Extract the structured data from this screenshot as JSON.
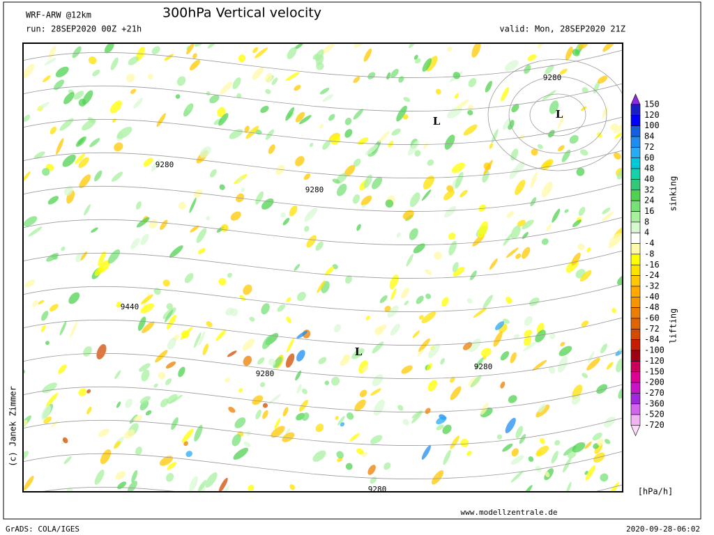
{
  "header": {
    "model": "WRF-ARW @12km",
    "title": "300hPa Vertical velocity",
    "run": "run: 28SEP2020 00Z +21h",
    "valid": "valid: Mon, 28SEP2020 21Z"
  },
  "map": {
    "contour_labels": [
      "9280",
      "9280",
      "9280",
      "9440",
      "9280",
      "9280",
      "9280"
    ],
    "lows": [
      "L",
      "L",
      "L"
    ]
  },
  "colorbar": {
    "levels": [
      "150",
      "120",
      "100",
      "84",
      "72",
      "60",
      "48",
      "40",
      "32",
      "24",
      "16",
      "8",
      "4",
      "-4",
      "-8",
      "-16",
      "-24",
      "-32",
      "-40",
      "-48",
      "-60",
      "-72",
      "-84",
      "-100",
      "-120",
      "-150",
      "-200",
      "-270",
      "-360",
      "-520",
      "-720"
    ],
    "colors": [
      "#8c28e6",
      "#1e1ec8",
      "#0000ff",
      "#1460dc",
      "#1e8cf0",
      "#28aaf5",
      "#00c8dc",
      "#14d2aa",
      "#32c878",
      "#50d250",
      "#78e078",
      "#a8f0a0",
      "#d8f8d2",
      "#ffffff",
      "#fffaaa",
      "#ffff00",
      "#ffe100",
      "#ffc800",
      "#ffaa00",
      "#f59600",
      "#eb7d00",
      "#e16400",
      "#d24b00",
      "#c31e00",
      "#a00014",
      "#c8005a",
      "#dc0096",
      "#c814c8",
      "#a028dc",
      "#d264f0",
      "#f0b4f5",
      "#fadcfa"
    ],
    "upper_label": "sinking",
    "lower_label": "lifting",
    "unit": "[hPa/h]"
  },
  "credit": "(c) Janek Zimmer",
  "footer": {
    "left": "GrADS: COLA/IGES",
    "website": "www.modellzentrale.de",
    "timestamp": "2020-09-28-06:02"
  }
}
